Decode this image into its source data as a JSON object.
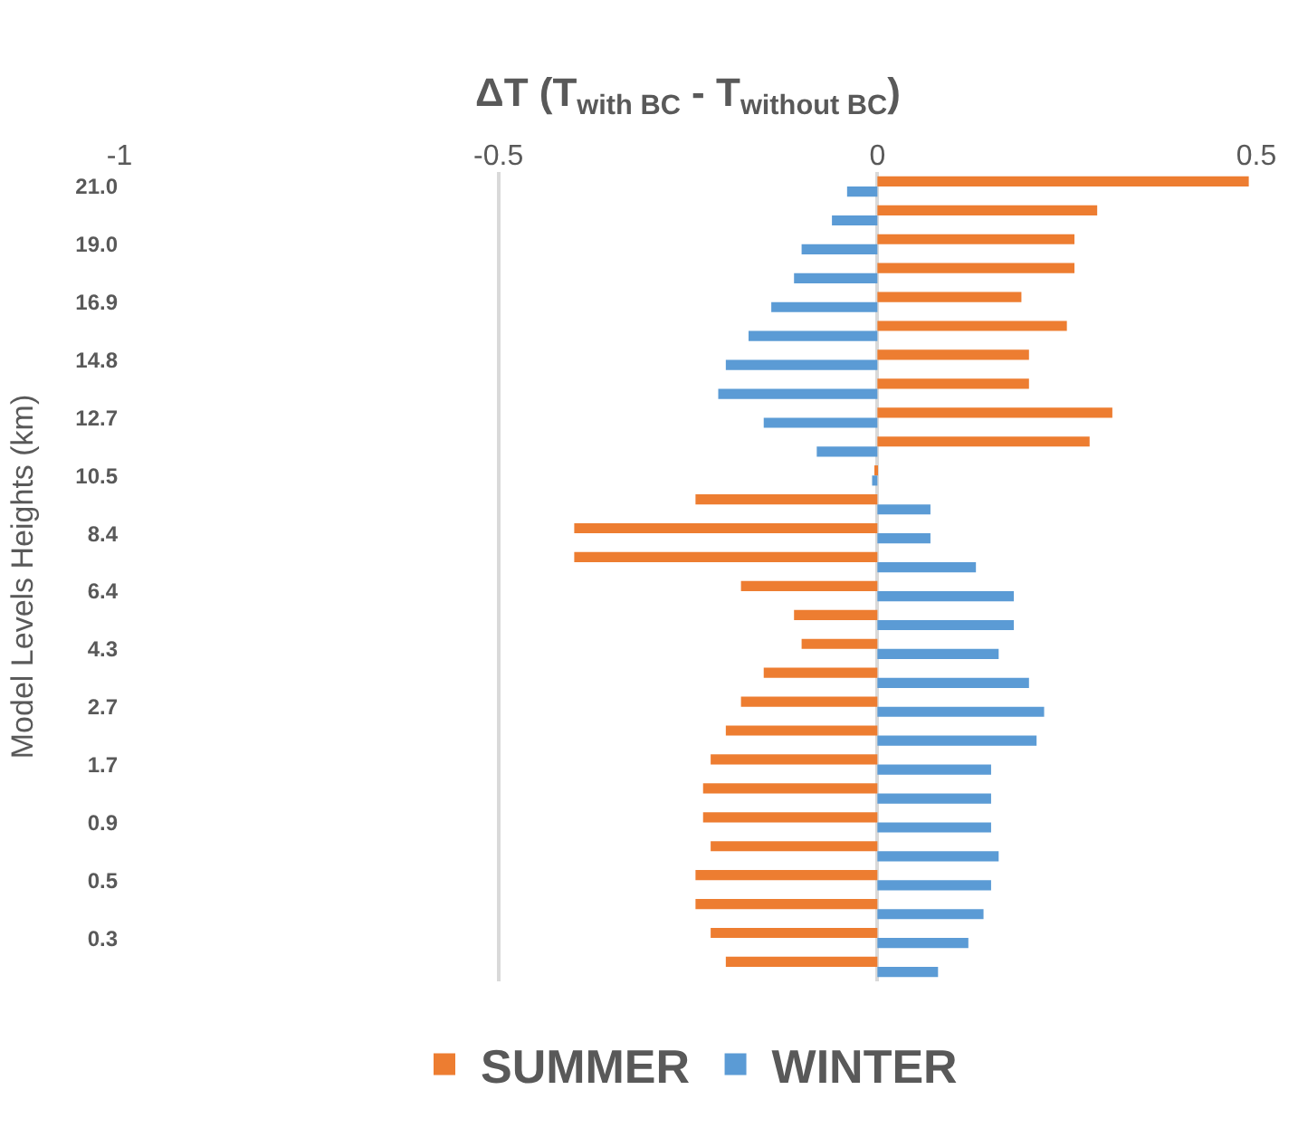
{
  "chart_data": {
    "type": "bar",
    "orientation": "horizontal",
    "xlabel": "ΔT (T$_{with BC}$ - T$_{without BC}$)",
    "ylabel": "Model Levels Heights (km)",
    "categories": [
      "21.0",
      null,
      "19.0",
      null,
      "16.9",
      null,
      "14.8",
      null,
      "12.7",
      null,
      "10.5",
      null,
      "8.4",
      null,
      "6.4",
      null,
      "4.3",
      null,
      "2.7",
      null,
      "1.7",
      null,
      "0.9",
      null,
      "0.5",
      null,
      "0.3",
      null
    ],
    "series": [
      {
        "name": "SUMMER",
        "color": "#ed7d31",
        "values": [
          0.49,
          0.29,
          0.26,
          0.26,
          0.19,
          0.25,
          0.2,
          0.2,
          0.31,
          0.28,
          -0.002,
          -0.24,
          -0.4,
          -0.4,
          -0.18,
          -0.11,
          -0.1,
          -0.15,
          -0.18,
          -0.2,
          -0.22,
          -0.23,
          -0.23,
          -0.22,
          -0.24,
          -0.24,
          -0.22,
          -0.2
        ]
      },
      {
        "name": "WINTER",
        "color": "#5b9bd5",
        "values": [
          -0.04,
          -0.06,
          -0.1,
          -0.11,
          -0.14,
          -0.17,
          -0.2,
          -0.21,
          -0.15,
          -0.08,
          -0.007,
          0.07,
          0.07,
          0.13,
          0.18,
          0.18,
          0.16,
          0.2,
          0.22,
          0.21,
          0.15,
          0.15,
          0.15,
          0.16,
          0.15,
          0.14,
          0.12,
          0.08
        ]
      }
    ],
    "xlim": [
      -1,
      0.5
    ],
    "xticks": [
      -1,
      -0.5,
      0,
      0.5
    ],
    "grid": "x",
    "legend": "bottom"
  }
}
